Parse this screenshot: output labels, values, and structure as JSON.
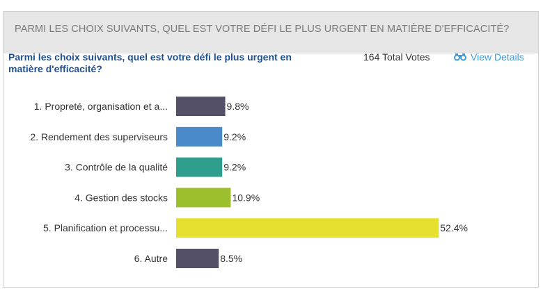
{
  "header": {
    "title": "PARMI LES CHOIX SUIVANTS, QUEL EST VOTRE DÉFI LE PLUS URGENT EN MATIÈRE D'EFFICACITÉ?"
  },
  "poll": {
    "question": "Parmi les choix suivants, quel est votre défi le plus urgent en matière d'efficacité?",
    "total_votes": "164 Total Votes",
    "view_details": "View Details",
    "view_icon": "binoculars-icon"
  },
  "chart_data": {
    "type": "bar",
    "orientation": "horizontal",
    "categories": [
      "1. Propreté, organisation et a...",
      "2. Rendement des superviseurs",
      "3. Contrôle de la qualité",
      "4. Gestion des stocks",
      "5. Planification et processu...",
      "6. Autre"
    ],
    "values": [
      9.8,
      9.2,
      9.2,
      10.9,
      52.4,
      8.5
    ],
    "value_labels": [
      "9.8%",
      "9.2%",
      "9.2%",
      "10.9%",
      "52.4%",
      "8.5%"
    ],
    "colors": [
      "#545068",
      "#4a8ac8",
      "#2f9e8c",
      "#9cbf2e",
      "#e6e02e",
      "#545068"
    ],
    "unit": "%",
    "xlim": [
      0,
      100
    ],
    "grid": false,
    "legend": "none"
  }
}
